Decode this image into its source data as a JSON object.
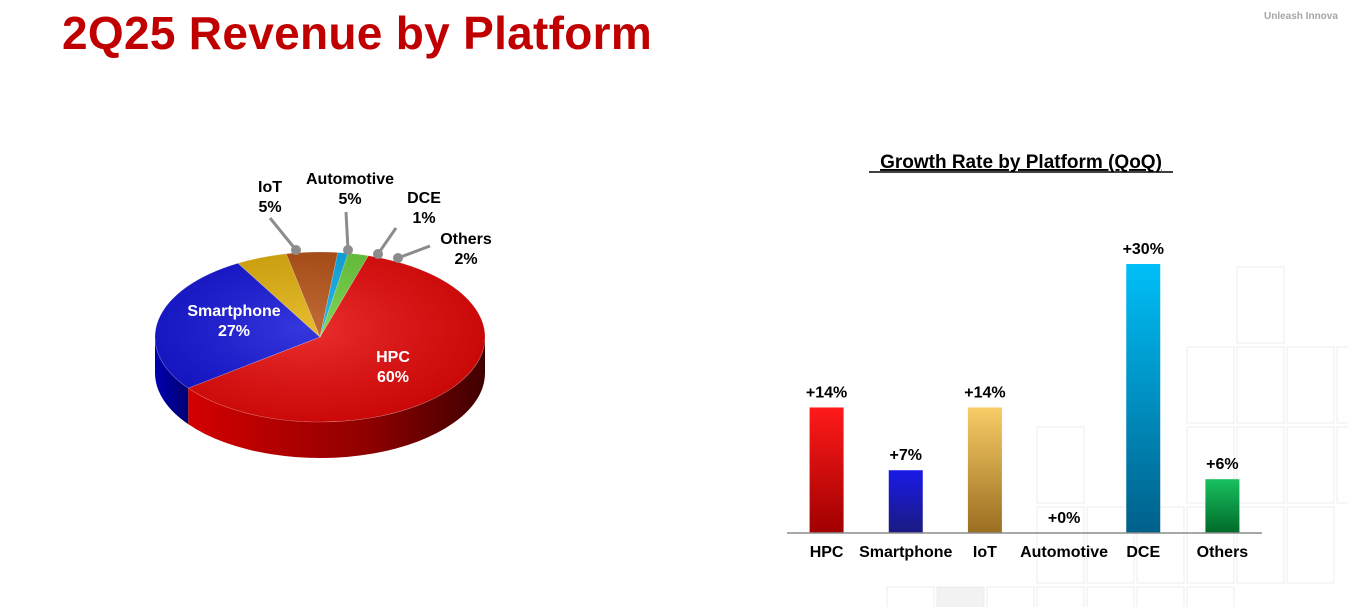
{
  "page": {
    "title": "2Q25 Revenue by Platform",
    "tagline": "Unleash Innova"
  },
  "chart_data": [
    {
      "type": "pie",
      "title": "",
      "categories": [
        "HPC",
        "Smartphone",
        "IoT",
        "Automotive",
        "DCE",
        "Others"
      ],
      "values": [
        60,
        27,
        5,
        5,
        1,
        2
      ],
      "value_labels": [
        "60%",
        "27%",
        "5%",
        "5%",
        "1%",
        "2%"
      ],
      "style": "3d",
      "colors": [
        "#e60000",
        "#0a0ad6",
        "#e0ac00",
        "#b34a0a",
        "#00a8e8",
        "#66cc33"
      ]
    },
    {
      "type": "bar",
      "title": "Growth Rate by Platform (QoQ)",
      "xlabel": "",
      "ylabel": "",
      "categories": [
        "HPC",
        "Smartphone",
        "IoT",
        "Automotive",
        "DCE",
        "Others"
      ],
      "values": [
        14,
        7,
        14,
        0,
        30,
        6
      ],
      "value_labels": [
        "+14%",
        "+7%",
        "+14%",
        "+0%",
        "+30%",
        "+6%"
      ],
      "ylim": [
        0,
        30
      ],
      "grid": false,
      "colors": [
        "#e60000",
        "#1515c8",
        "#e8b04a",
        "#999999",
        "#1aa8e0",
        "#10a040"
      ]
    }
  ]
}
